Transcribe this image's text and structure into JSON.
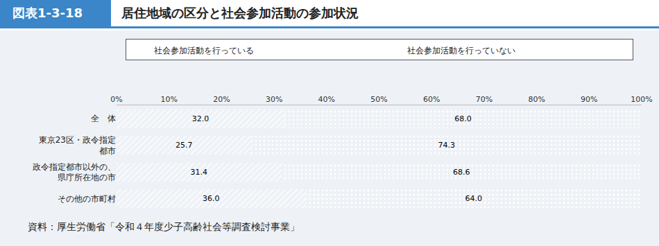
{
  "chart_data": {
    "type": "bar",
    "orientation": "horizontal",
    "stacked": true,
    "figure_label": "図表1-3-18",
    "title": "居住地域の区分と社会参加活動の参加状況",
    "source": "資料：厚生労働省「令和４年度少子高齢社会等調査検討事業」",
    "categories": [
      "全　体",
      "東京23区・政令指定都市",
      "政令指定都市以外の、県庁所在地の市",
      "その他の市町村"
    ],
    "series": [
      {
        "name": "社会参加活動を行っている",
        "color": "#5aa7dc",
        "values": [
          32.0,
          25.7,
          31.4,
          36.0
        ],
        "value_labels": [
          "32.0",
          "25.7",
          "31.4",
          "36.0"
        ]
      },
      {
        "name": "社会参加活動を行っていない",
        "color": "#f5a65b",
        "values": [
          68.0,
          74.3,
          68.6,
          64.0
        ],
        "value_labels": [
          "68.0",
          "74.3",
          "68.6",
          "64.0"
        ]
      }
    ],
    "xlim": [
      0,
      100
    ],
    "xticks": [
      {
        "value": 0,
        "label": "0%"
      },
      {
        "value": 10,
        "label": "10%"
      },
      {
        "value": 20,
        "label": "20%"
      },
      {
        "value": 30,
        "label": "30%"
      },
      {
        "value": 40,
        "label": "40%"
      },
      {
        "value": 50,
        "label": "50%"
      },
      {
        "value": 60,
        "label": "60%"
      },
      {
        "value": 70,
        "label": "70%"
      },
      {
        "value": 80,
        "label": "80%"
      },
      {
        "value": 90,
        "label": "90%"
      },
      {
        "value": 100,
        "label": "100%"
      }
    ],
    "grid": false,
    "legend": "top",
    "data_labels": true
  }
}
